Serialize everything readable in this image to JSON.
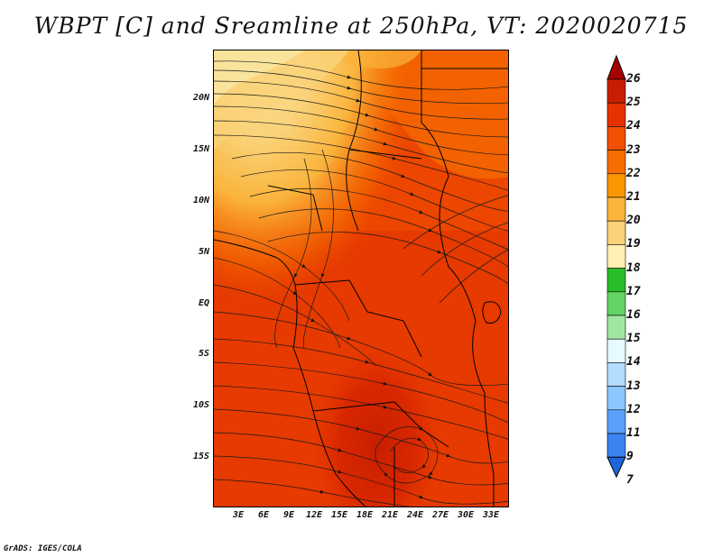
{
  "title": "WBPT [C] and Sreamline at 250hPa, VT: 2020020715",
  "credit": "GrADS: IGES/COLA",
  "lat_labels": [
    "20N",
    "15N",
    "10N",
    "5N",
    "EQ",
    "5S",
    "10S",
    "15S"
  ],
  "lon_labels": [
    "3E",
    "6E",
    "9E",
    "12E",
    "15E",
    "18E",
    "21E",
    "24E",
    "27E",
    "30E",
    "33E"
  ],
  "colorbar": {
    "labels": [
      "26",
      "25",
      "24",
      "23",
      "22",
      "21",
      "20",
      "19",
      "18",
      "17",
      "16",
      "15",
      "14",
      "13",
      "12",
      "11",
      "9",
      "7"
    ],
    "colors": [
      "#a50000",
      "#c81e00",
      "#e63200",
      "#f05000",
      "#f56e00",
      "#fa9600",
      "#fab43c",
      "#fad278",
      "#fff0b4",
      "#28be28",
      "#64d264",
      "#a0e6a0",
      "#e6faff",
      "#b4dcff",
      "#8cc8ff",
      "#5aa0fa",
      "#3c82f0",
      "#1e64dc"
    ]
  }
}
